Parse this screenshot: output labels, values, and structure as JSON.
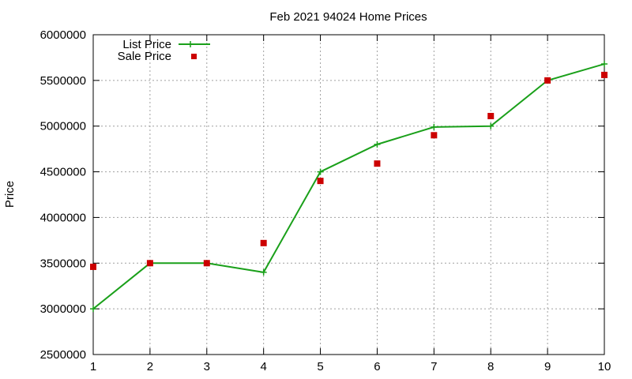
{
  "chart_data": {
    "type": "line",
    "title": "Feb 2021 94024 Home Prices",
    "xlabel": "",
    "ylabel": "Price",
    "x": [
      1,
      2,
      3,
      4,
      5,
      6,
      7,
      8,
      9,
      10
    ],
    "xlim": [
      1,
      10
    ],
    "ylim": [
      2500000,
      6000000
    ],
    "yticks": [
      "2500000",
      "3000000",
      "3500000",
      "4000000",
      "4500000",
      "5000000",
      "5500000",
      "6000000"
    ],
    "xticks": [
      "1",
      "2",
      "3",
      "4",
      "5",
      "6",
      "7",
      "8",
      "9",
      "10"
    ],
    "grid": true,
    "legend_position": "top-left",
    "series": [
      {
        "name": "List Price",
        "style": "line+cross",
        "color": "#1aa01a",
        "values": [
          3000000,
          3500000,
          3500000,
          3400000,
          4500000,
          4800000,
          4990000,
          5000000,
          5500000,
          5680000
        ]
      },
      {
        "name": "Sale Price",
        "style": "square-points",
        "color": "#cc0000",
        "values": [
          3460000,
          3500000,
          3500000,
          3720000,
          4400000,
          4590000,
          4900000,
          5110000,
          5500000,
          5560000
        ]
      }
    ]
  }
}
